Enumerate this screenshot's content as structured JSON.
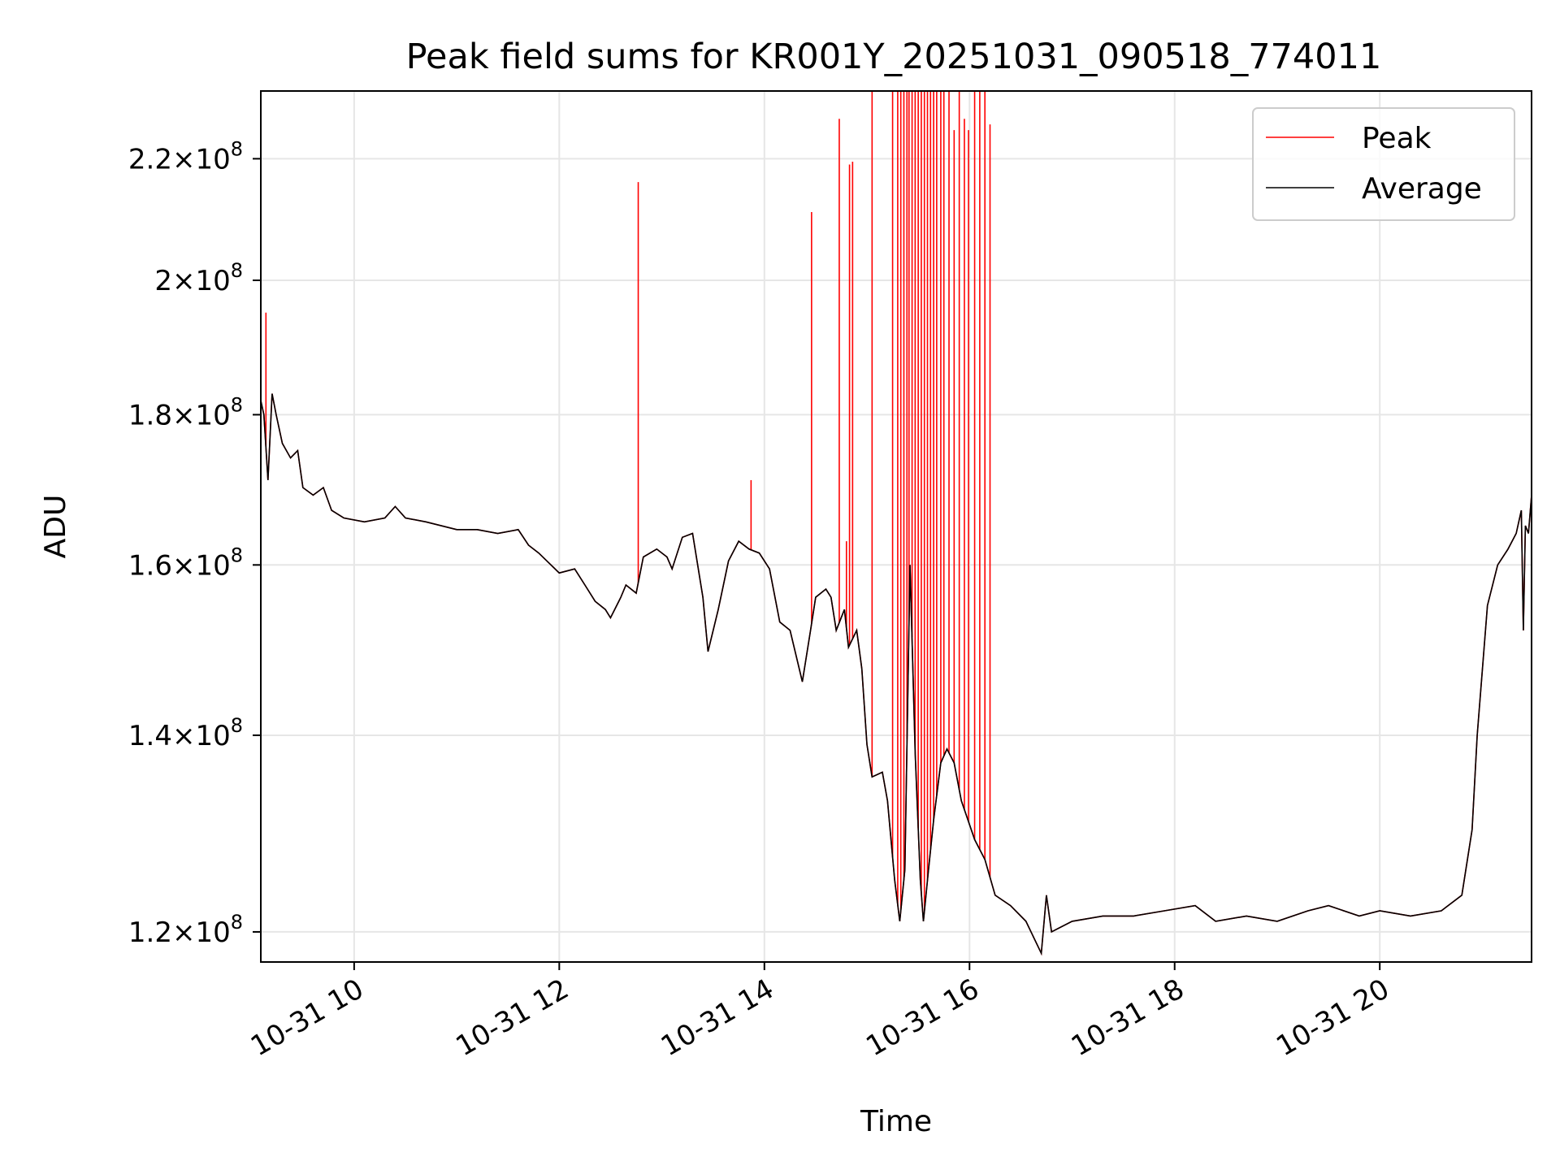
{
  "chart_data": {
    "type": "line",
    "title": "Peak field sums for KR001Y_20251031_090518_774011",
    "xlabel": "Time",
    "ylabel": "ADU",
    "x_unit": "hours since 10-31 00:00",
    "xlim": [
      9.09,
      21.48
    ],
    "ylim": [
      117200000.0,
      232000000.0
    ],
    "y_scale": "log",
    "grid": true,
    "legend_position": "top-right",
    "x_ticks": [
      {
        "value": 10,
        "label": "10-31 10"
      },
      {
        "value": 12,
        "label": "10-31 12"
      },
      {
        "value": 14,
        "label": "10-31 14"
      },
      {
        "value": 16,
        "label": "10-31 16"
      },
      {
        "value": 18,
        "label": "10-31 18"
      },
      {
        "value": 20,
        "label": "10-31 20"
      }
    ],
    "y_ticks": [
      {
        "value": 120000000.0,
        "mantissa": "1.2",
        "exponent": "8"
      },
      {
        "value": 140000000.0,
        "mantissa": "1.4",
        "exponent": "8"
      },
      {
        "value": 160000000.0,
        "mantissa": "1.6",
        "exponent": "8"
      },
      {
        "value": 180000000.0,
        "mantissa": "1.8",
        "exponent": "8"
      },
      {
        "value": 200000000.0,
        "mantissa": "2",
        "exponent": "8"
      },
      {
        "value": 220000000.0,
        "mantissa": "2.2",
        "exponent": "8"
      }
    ],
    "series": [
      {
        "name": "Peak",
        "color": "#ff0000"
      },
      {
        "name": "Average",
        "color": "#000000"
      }
    ],
    "average_points": [
      [
        9.09,
        182000000.0
      ],
      [
        9.12,
        180000000.0
      ],
      [
        9.16,
        171000000.0
      ],
      [
        9.2,
        183000000.0
      ],
      [
        9.24,
        180000000.0
      ],
      [
        9.3,
        176000000.0
      ],
      [
        9.38,
        174000000.0
      ],
      [
        9.45,
        175000000.0
      ],
      [
        9.5,
        170000000.0
      ],
      [
        9.6,
        169000000.0
      ],
      [
        9.7,
        170000000.0
      ],
      [
        9.78,
        167000000.0
      ],
      [
        9.9,
        166000000.0
      ],
      [
        10.1,
        165500000.0
      ],
      [
        10.3,
        166000000.0
      ],
      [
        10.4,
        167500000.0
      ],
      [
        10.5,
        166000000.0
      ],
      [
        10.7,
        165500000.0
      ],
      [
        11.0,
        164500000.0
      ],
      [
        11.2,
        164500000.0
      ],
      [
        11.4,
        164000000.0
      ],
      [
        11.6,
        164500000.0
      ],
      [
        11.7,
        162500000.0
      ],
      [
        11.8,
        161500000.0
      ],
      [
        12.0,
        159000000.0
      ],
      [
        12.15,
        159500000.0
      ],
      [
        12.25,
        157500000.0
      ],
      [
        12.35,
        155500000.0
      ],
      [
        12.45,
        154500000.0
      ],
      [
        12.5,
        153500000.0
      ],
      [
        12.6,
        156000000.0
      ],
      [
        12.65,
        157500000.0
      ],
      [
        12.75,
        156500000.0
      ],
      [
        12.82,
        161000000.0
      ],
      [
        12.95,
        162000000.0
      ],
      [
        13.05,
        161000000.0
      ],
      [
        13.1,
        159500000.0
      ],
      [
        13.2,
        163500000.0
      ],
      [
        13.3,
        164000000.0
      ],
      [
        13.4,
        156000000.0
      ],
      [
        13.45,
        149500000.0
      ],
      [
        13.55,
        154500000.0
      ],
      [
        13.65,
        160500000.0
      ],
      [
        13.75,
        163000000.0
      ],
      [
        13.85,
        162000000.0
      ],
      [
        13.95,
        161500000.0
      ],
      [
        14.05,
        159500000.0
      ],
      [
        14.15,
        153000000.0
      ],
      [
        14.25,
        152000000.0
      ],
      [
        14.33,
        148000000.0
      ],
      [
        14.37,
        146000000.0
      ],
      [
        14.45,
        152000000.0
      ],
      [
        14.5,
        156000000.0
      ],
      [
        14.6,
        157000000.0
      ],
      [
        14.65,
        156000000.0
      ],
      [
        14.7,
        152000000.0
      ],
      [
        14.78,
        154500000.0
      ],
      [
        14.82,
        150000000.0
      ],
      [
        14.9,
        152000000.0
      ],
      [
        14.95,
        147500000.0
      ],
      [
        15.0,
        139000000.0
      ],
      [
        15.05,
        135500000.0
      ],
      [
        15.15,
        136000000.0
      ],
      [
        15.2,
        133000000.0
      ],
      [
        15.27,
        125000000.0
      ],
      [
        15.32,
        121000000.0
      ],
      [
        15.37,
        126000000.0
      ],
      [
        15.42,
        160000000.0
      ],
      [
        15.47,
        138000000.0
      ],
      [
        15.52,
        125000000.0
      ],
      [
        15.55,
        121000000.0
      ],
      [
        15.6,
        126000000.0
      ],
      [
        15.65,
        131000000.0
      ],
      [
        15.72,
        137000000.0
      ],
      [
        15.78,
        138500000.0
      ],
      [
        15.85,
        137000000.0
      ],
      [
        15.92,
        133000000.0
      ],
      [
        16.05,
        129000000.0
      ],
      [
        16.15,
        127000000.0
      ],
      [
        16.25,
        123500000.0
      ],
      [
        16.4,
        122500000.0
      ],
      [
        16.55,
        121000000.0
      ],
      [
        16.7,
        118000000.0
      ],
      [
        16.75,
        123500000.0
      ],
      [
        16.8,
        120000000.0
      ],
      [
        17.0,
        121000000.0
      ],
      [
        17.3,
        121500000.0
      ],
      [
        17.6,
        121500000.0
      ],
      [
        17.9,
        122000000.0
      ],
      [
        18.2,
        122500000.0
      ],
      [
        18.4,
        121000000.0
      ],
      [
        18.7,
        121500000.0
      ],
      [
        19.0,
        121000000.0
      ],
      [
        19.3,
        122000000.0
      ],
      [
        19.5,
        122500000.0
      ],
      [
        19.8,
        121500000.0
      ],
      [
        20.0,
        122000000.0
      ],
      [
        20.3,
        121500000.0
      ],
      [
        20.6,
        122000000.0
      ],
      [
        20.8,
        123500000.0
      ],
      [
        20.9,
        130000000.0
      ],
      [
        20.95,
        140000000.0
      ],
      [
        21.05,
        155000000.0
      ],
      [
        21.15,
        160000000.0
      ],
      [
        21.25,
        162000000.0
      ],
      [
        21.33,
        164000000.0
      ],
      [
        21.38,
        167000000.0
      ],
      [
        21.4,
        152000000.0
      ],
      [
        21.42,
        165000000.0
      ],
      [
        21.45,
        164000000.0
      ],
      [
        21.48,
        169000000.0
      ]
    ],
    "peak_spikes": [
      [
        9.14,
        195000000.0
      ],
      [
        12.77,
        216000000.0
      ],
      [
        13.87,
        171000000.0
      ],
      [
        14.46,
        211000000.0
      ],
      [
        14.73,
        227000000.0
      ],
      [
        14.8,
        163000000.0
      ],
      [
        14.83,
        219000000.0
      ],
      [
        14.86,
        219500000.0
      ],
      [
        15.05,
        232000000.0
      ],
      [
        15.25,
        232000000.0
      ],
      [
        15.3,
        232000000.0
      ],
      [
        15.33,
        232000000.0
      ],
      [
        15.36,
        232000000.0
      ],
      [
        15.39,
        232000000.0
      ],
      [
        15.41,
        232000000.0
      ],
      [
        15.44,
        232000000.0
      ],
      [
        15.47,
        232000000.0
      ],
      [
        15.5,
        232000000.0
      ],
      [
        15.53,
        232000000.0
      ],
      [
        15.56,
        232000000.0
      ],
      [
        15.59,
        232000000.0
      ],
      [
        15.62,
        232000000.0
      ],
      [
        15.65,
        232000000.0
      ],
      [
        15.68,
        232000000.0
      ],
      [
        15.72,
        232000000.0
      ],
      [
        15.75,
        232000000.0
      ],
      [
        15.8,
        232000000.0
      ],
      [
        15.85,
        225000000.0
      ],
      [
        15.9,
        232000000.0
      ],
      [
        15.95,
        227000000.0
      ],
      [
        15.99,
        225000000.0
      ],
      [
        16.05,
        232000000.0
      ],
      [
        16.1,
        232000000.0
      ],
      [
        16.15,
        232000000.0
      ],
      [
        16.2,
        226000000.0
      ]
    ]
  }
}
